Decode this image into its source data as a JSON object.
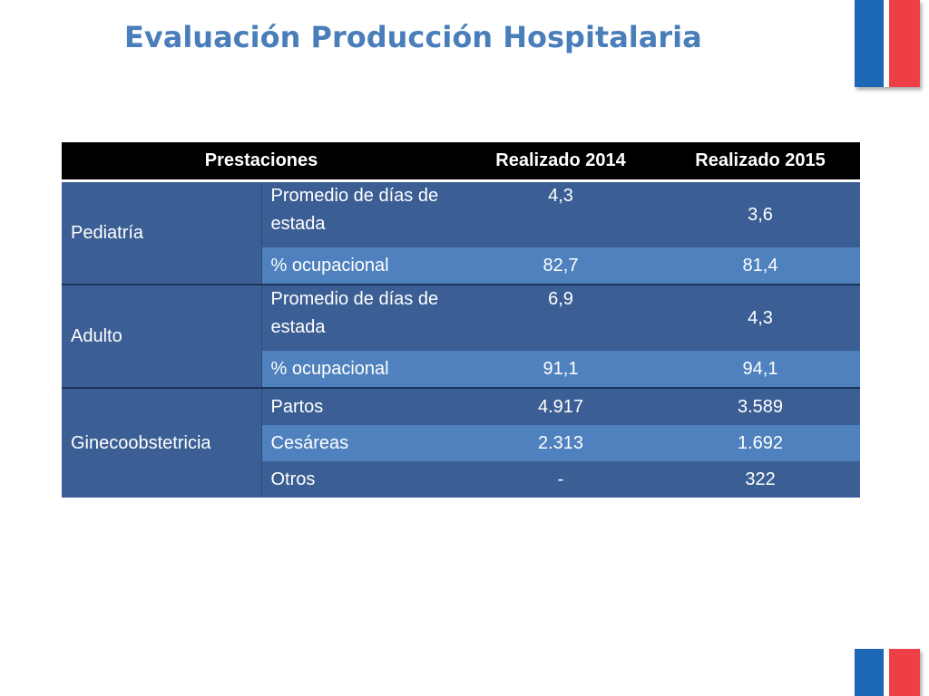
{
  "slide": {
    "title": "Evaluación Producción Hospitalaria"
  },
  "colors": {
    "title": "#4a7ebb",
    "header_bg": "#000000",
    "row_dark": "#3b5f94",
    "row_light": "#4e81bd",
    "flag_blue": "#1d67b7",
    "flag_red": "#ef3f46"
  },
  "table": {
    "headers": {
      "prestaciones": "Prestaciones",
      "y2014": "Realizado 2014",
      "y2015": "Realizado 2015"
    },
    "groups": [
      {
        "name": "Pediatría",
        "rows": [
          {
            "label": "Promedio de días de estada",
            "v2014": "4,3",
            "v2015": "3,6"
          },
          {
            "label": "% ocupacional",
            "v2014": "82,7",
            "v2015": "81,4"
          }
        ]
      },
      {
        "name": "Adulto",
        "rows": [
          {
            "label": "Promedio de días de estada",
            "v2014": "6,9",
            "v2015": "4,3"
          },
          {
            "label": "% ocupacional",
            "v2014": "91,1",
            "v2015": "94,1"
          }
        ]
      },
      {
        "name": "Ginecoobstetricia",
        "rows": [
          {
            "label": "Partos",
            "v2014": "4.917",
            "v2015": "3.589"
          },
          {
            "label": "Cesáreas",
            "v2014": "2.313",
            "v2015": "1.692"
          },
          {
            "label": "Otros",
            "v2014": "-",
            "v2015": "322"
          }
        ]
      }
    ]
  }
}
